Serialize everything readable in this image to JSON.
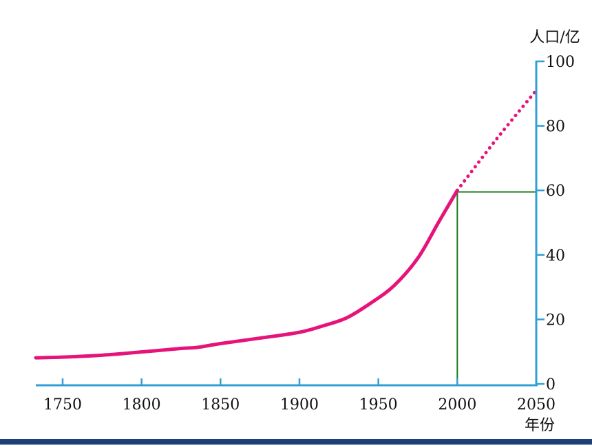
{
  "chart_data": {
    "type": "line",
    "title": "",
    "xlabel": "年份",
    "ylabel": "人口/亿",
    "xlim": [
      1733,
      2050
    ],
    "ylim": [
      0,
      100
    ],
    "x_ticks": [
      {
        "value": 1750,
        "label": "1750"
      },
      {
        "value": 1800,
        "label": "1800"
      },
      {
        "value": 1850,
        "label": "1850"
      },
      {
        "value": 1900,
        "label": "1900"
      },
      {
        "value": 1950,
        "label": "1950"
      },
      {
        "value": 2000,
        "label": "2000"
      },
      {
        "value": 2050,
        "label": "2050"
      }
    ],
    "y_ticks": [
      {
        "value": 0,
        "label": "0"
      },
      {
        "value": 20,
        "label": "20"
      },
      {
        "value": 40,
        "label": "40"
      },
      {
        "value": 60,
        "label": "60"
      },
      {
        "value": 80,
        "label": "80"
      },
      {
        "value": 100,
        "label": "100"
      }
    ],
    "series": [
      {
        "style": "solid",
        "color": "#e6147a",
        "points": [
          [
            1733,
            8.1
          ],
          [
            1750,
            8.3
          ],
          [
            1775,
            8.9
          ],
          [
            1800,
            9.9
          ],
          [
            1825,
            11.0
          ],
          [
            1835,
            11.3
          ],
          [
            1850,
            12.5
          ],
          [
            1875,
            14.2
          ],
          [
            1900,
            16.0
          ],
          [
            1915,
            18.0
          ],
          [
            1930,
            20.5
          ],
          [
            1945,
            25.0
          ],
          [
            1960,
            30.5
          ],
          [
            1975,
            39.0
          ],
          [
            1988,
            50.0
          ],
          [
            2000,
            60.0
          ]
        ]
      },
      {
        "style": "dotted",
        "color": "#e6147a",
        "points": [
          [
            2000,
            60.0
          ],
          [
            2025,
            76.0
          ],
          [
            2050,
            91.0
          ]
        ]
      }
    ],
    "guides": {
      "color": "#1a7a1a",
      "x": 2000,
      "y": 59.5
    },
    "axis_color": "#2f9fd6",
    "grid": false,
    "legend": "none"
  }
}
